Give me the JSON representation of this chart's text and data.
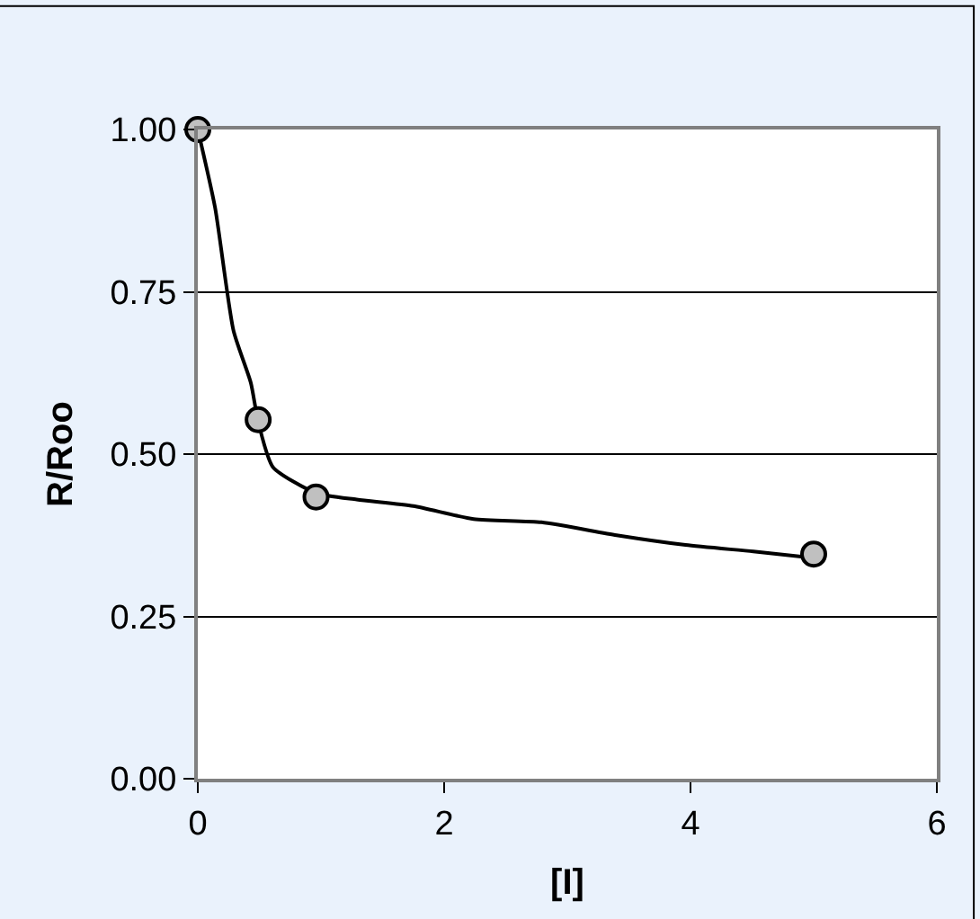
{
  "chart_data": {
    "type": "scatter",
    "xlabel": "[I]",
    "ylabel": "R/Roo",
    "xlim": [
      0,
      6
    ],
    "xticks": [
      0,
      2,
      4,
      6
    ],
    "ylim": [
      0,
      1
    ],
    "yticks": [
      {
        "value": 0,
        "label": "0.00"
      },
      {
        "value": 0.25,
        "label": "0.25"
      },
      {
        "value": 0.5,
        "label": "0.50"
      },
      {
        "value": 0.75,
        "label": "0.75"
      },
      {
        "value": 1,
        "label": "1.00"
      }
    ],
    "grid": "y",
    "marker": "circle",
    "series": [
      {
        "type": "line",
        "color": "#000000",
        "marker": "none",
        "line_style": "solid",
        "x": [
          0,
          0.14,
          0.29,
          0.43,
          0.49,
          0.61,
          0.96,
          1.29,
          1.75,
          2.24,
          2.79,
          3.4,
          3.96,
          4.51,
          5.0
        ],
        "values": [
          1.0,
          0.88,
          0.69,
          0.61,
          0.55,
          0.48,
          0.44,
          0.43,
          0.42,
          0.4,
          0.395,
          0.375,
          0.36,
          0.35,
          0.34
        ]
      },
      {
        "color": "#c0c0c0",
        "x": [
          0,
          0.49,
          0.96,
          5.0
        ],
        "values": [
          1.0,
          0.553,
          0.434,
          0.346
        ]
      }
    ]
  }
}
